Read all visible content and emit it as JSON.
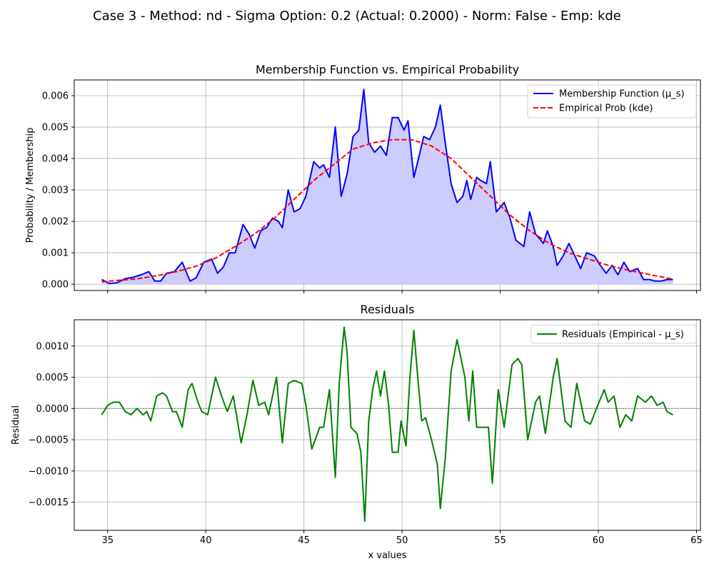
{
  "suptitle": "Case 3 - Method: nd - Sigma Option: 0.2 (Actual: 0.2000) - Norm: False - Emp: kde",
  "colors": {
    "membership": "#0000ff",
    "membership_fill": "#ccccff",
    "empirical": "#ff0000",
    "residual": "#008000",
    "grid": "#b0b0b0",
    "zero_line": "#808080"
  },
  "chart_data": [
    {
      "type": "line",
      "title": "Membership Function vs. Empirical Probability",
      "xlabel": "",
      "ylabel": "Probability / Membership",
      "xlim": [
        33.3,
        65.2
      ],
      "ylim": [
        -0.0002,
        0.0065
      ],
      "xticks": [
        35,
        40,
        45,
        50,
        55,
        60,
        65
      ],
      "yticks": [
        0.0,
        0.001,
        0.002,
        0.003,
        0.004,
        0.005,
        0.006
      ],
      "ytick_labels": [
        "0.000",
        "0.001",
        "0.002",
        "0.003",
        "0.004",
        "0.005",
        "0.006"
      ],
      "grid": true,
      "legend": "top-right",
      "series": [
        {
          "name": "Membership Function (μ_s)",
          "style": "solid",
          "fill": true,
          "points": [
            [
              34.7,
              0.00015
            ],
            [
              35.1,
              2e-05
            ],
            [
              35.5,
              5e-05
            ],
            [
              35.9,
              0.00018
            ],
            [
              36.3,
              0.00022
            ],
            [
              36.7,
              0.0003
            ],
            [
              37.1,
              0.0004
            ],
            [
              37.4,
              0.0001
            ],
            [
              37.7,
              0.0001
            ],
            [
              38.0,
              0.00035
            ],
            [
              38.4,
              0.0004
            ],
            [
              38.8,
              0.0007
            ],
            [
              39.2,
              0.0001
            ],
            [
              39.5,
              0.0002
            ],
            [
              39.9,
              0.0007
            ],
            [
              40.3,
              0.0008
            ],
            [
              40.6,
              0.00035
            ],
            [
              40.9,
              0.00055
            ],
            [
              41.2,
              0.001
            ],
            [
              41.5,
              0.001
            ],
            [
              41.9,
              0.0019
            ],
            [
              42.2,
              0.0016
            ],
            [
              42.5,
              0.00115
            ],
            [
              42.8,
              0.0017
            ],
            [
              43.1,
              0.0018
            ],
            [
              43.4,
              0.0021
            ],
            [
              43.7,
              0.002
            ],
            [
              43.9,
              0.0018
            ],
            [
              44.2,
              0.003
            ],
            [
              44.5,
              0.0023
            ],
            [
              44.8,
              0.0024
            ],
            [
              45.1,
              0.0028
            ],
            [
              45.5,
              0.0039
            ],
            [
              45.8,
              0.0037
            ],
            [
              46.0,
              0.0038
            ],
            [
              46.3,
              0.0034
            ],
            [
              46.6,
              0.005
            ],
            [
              46.9,
              0.0028
            ],
            [
              47.2,
              0.0035
            ],
            [
              47.5,
              0.0047
            ],
            [
              47.8,
              0.0049
            ],
            [
              48.05,
              0.0062
            ],
            [
              48.3,
              0.0045
            ],
            [
              48.6,
              0.0042
            ],
            [
              48.9,
              0.0044
            ],
            [
              49.2,
              0.0041
            ],
            [
              49.5,
              0.0053
            ],
            [
              49.8,
              0.0053
            ],
            [
              50.1,
              0.0049
            ],
            [
              50.3,
              0.0052
            ],
            [
              50.6,
              0.0034
            ],
            [
              50.8,
              0.0039
            ],
            [
              51.1,
              0.0047
            ],
            [
              51.4,
              0.0046
            ],
            [
              51.7,
              0.005
            ],
            [
              51.95,
              0.0057
            ],
            [
              52.2,
              0.0045
            ],
            [
              52.5,
              0.0032
            ],
            [
              52.8,
              0.0026
            ],
            [
              53.1,
              0.0028
            ],
            [
              53.3,
              0.0033
            ],
            [
              53.5,
              0.0027
            ],
            [
              53.8,
              0.0034
            ],
            [
              54.0,
              0.0033
            ],
            [
              54.3,
              0.0032
            ],
            [
              54.5,
              0.0039
            ],
            [
              54.8,
              0.0023
            ],
            [
              55.2,
              0.0026
            ],
            [
              55.5,
              0.0021
            ],
            [
              55.8,
              0.0014
            ],
            [
              56.2,
              0.0012
            ],
            [
              56.5,
              0.0023
            ],
            [
              56.8,
              0.0016
            ],
            [
              57.2,
              0.0013
            ],
            [
              57.4,
              0.0017
            ],
            [
              57.7,
              0.0012
            ],
            [
              57.9,
              0.0006
            ],
            [
              58.2,
              0.0009
            ],
            [
              58.5,
              0.0013
            ],
            [
              58.8,
              0.0009
            ],
            [
              59.1,
              0.0005
            ],
            [
              59.4,
              0.001
            ],
            [
              59.8,
              0.0009
            ],
            [
              60.1,
              0.0006
            ],
            [
              60.4,
              0.00035
            ],
            [
              60.7,
              0.0006
            ],
            [
              61.0,
              0.0003
            ],
            [
              61.3,
              0.0007
            ],
            [
              61.6,
              0.0004
            ],
            [
              62.0,
              0.0005
            ],
            [
              62.3,
              0.00015
            ],
            [
              62.6,
              0.00015
            ],
            [
              62.9,
              0.0001
            ],
            [
              63.2,
              0.0001
            ],
            [
              63.5,
              0.00015
            ],
            [
              63.8,
              0.00015
            ]
          ]
        },
        {
          "name": "Empirical Prob (kde)",
          "style": "dashed",
          "fill": false,
          "points": [
            [
              34.7,
              8e-05
            ],
            [
              35.5,
              0.00012
            ],
            [
              36.5,
              0.00017
            ],
            [
              37.5,
              0.00027
            ],
            [
              38.5,
              0.0004
            ],
            [
              39.5,
              0.00057
            ],
            [
              40.5,
              0.00083
            ],
            [
              41.5,
              0.0012
            ],
            [
              42.5,
              0.0016
            ],
            [
              43.5,
              0.0021
            ],
            [
              44.5,
              0.0027
            ],
            [
              45.5,
              0.0033
            ],
            [
              46.5,
              0.0038
            ],
            [
              47.5,
              0.0043
            ],
            [
              48.5,
              0.0045
            ],
            [
              49.5,
              0.0046
            ],
            [
              50.5,
              0.0046
            ],
            [
              51.5,
              0.0044
            ],
            [
              52.5,
              0.004
            ],
            [
              53.5,
              0.0034
            ],
            [
              54.5,
              0.0028
            ],
            [
              55.5,
              0.0022
            ],
            [
              56.5,
              0.0017
            ],
            [
              57.5,
              0.0013
            ],
            [
              58.5,
              0.001
            ],
            [
              59.5,
              0.0008
            ],
            [
              60.5,
              0.0006
            ],
            [
              61.5,
              0.00045
            ],
            [
              62.5,
              0.00032
            ],
            [
              63.8,
              0.00016
            ]
          ]
        }
      ]
    },
    {
      "type": "line",
      "title": "Residuals",
      "xlabel": "x values",
      "ylabel": "Residual",
      "xlim": [
        33.3,
        65.2
      ],
      "ylim": [
        -0.00195,
        0.00142
      ],
      "xticks": [
        35,
        40,
        45,
        50,
        55,
        60,
        65
      ],
      "xtick_labels": [
        "35",
        "40",
        "45",
        "50",
        "55",
        "60",
        "65"
      ],
      "yticks": [
        -0.0015,
        -0.001,
        -0.0005,
        0.0,
        0.0005,
        0.001
      ],
      "ytick_labels": [
        "−0.0015",
        "−0.0010",
        "−0.0005",
        "0.0000",
        "0.0005",
        "0.0010"
      ],
      "grid": true,
      "legend": "top-right",
      "series": [
        {
          "name": "Residuals (Empirical - μ_s)",
          "style": "solid",
          "points": [
            [
              34.7,
              -0.0001
            ],
            [
              35.0,
              5e-05
            ],
            [
              35.3,
              0.0001
            ],
            [
              35.6,
              0.0001
            ],
            [
              35.9,
              -5e-05
            ],
            [
              36.2,
              -0.0001
            ],
            [
              36.5,
              0.0
            ],
            [
              36.8,
              -0.0001
            ],
            [
              37.0,
              -5e-05
            ],
            [
              37.2,
              -0.0002
            ],
            [
              37.5,
              0.0002
            ],
            [
              37.8,
              0.00025
            ],
            [
              38.0,
              0.0002
            ],
            [
              38.3,
              -5e-05
            ],
            [
              38.5,
              -5e-05
            ],
            [
              38.8,
              -0.0003
            ],
            [
              39.1,
              0.0003
            ],
            [
              39.3,
              0.0004
            ],
            [
              39.6,
              0.0001
            ],
            [
              39.8,
              -5e-05
            ],
            [
              40.1,
              -0.0001
            ],
            [
              40.5,
              0.0005
            ],
            [
              40.8,
              0.0002
            ],
            [
              41.1,
              -5e-05
            ],
            [
              41.4,
              0.0002
            ],
            [
              41.8,
              -0.00055
            ],
            [
              42.1,
              -0.0001
            ],
            [
              42.4,
              0.00045
            ],
            [
              42.7,
              5e-05
            ],
            [
              43.0,
              0.0001
            ],
            [
              43.2,
              -0.0001
            ],
            [
              43.6,
              0.0005
            ],
            [
              43.9,
              -0.00055
            ],
            [
              44.2,
              0.0004
            ],
            [
              44.5,
              0.00045
            ],
            [
              44.9,
              0.0004
            ],
            [
              45.1,
              5e-05
            ],
            [
              45.4,
              -0.00065
            ],
            [
              45.8,
              -0.0003
            ],
            [
              46.0,
              -0.0003
            ],
            [
              46.3,
              0.0003
            ],
            [
              46.6,
              -0.0011
            ],
            [
              46.8,
              0.0004
            ],
            [
              47.05,
              0.0013
            ],
            [
              47.2,
              0.0009
            ],
            [
              47.4,
              -0.0003
            ],
            [
              47.7,
              -0.0004
            ],
            [
              47.9,
              -0.0007
            ],
            [
              48.1,
              -0.0018
            ],
            [
              48.3,
              -0.0002
            ],
            [
              48.5,
              0.0003
            ],
            [
              48.7,
              0.0006
            ],
            [
              48.9,
              0.0002
            ],
            [
              49.1,
              0.0006
            ],
            [
              49.3,
              0.0001
            ],
            [
              49.5,
              -0.0007
            ],
            [
              49.8,
              -0.0007
            ],
            [
              49.95,
              -0.0002
            ],
            [
              50.2,
              -0.0006
            ],
            [
              50.4,
              0.0005
            ],
            [
              50.6,
              0.00125
            ],
            [
              50.8,
              0.0005
            ],
            [
              51.0,
              -0.0002
            ],
            [
              51.2,
              -0.00015
            ],
            [
              51.5,
              -0.0005
            ],
            [
              51.8,
              -0.0009
            ],
            [
              51.95,
              -0.0016
            ],
            [
              52.2,
              -0.0008
            ],
            [
              52.5,
              0.0006
            ],
            [
              52.8,
              0.0011
            ],
            [
              53.0,
              0.0008
            ],
            [
              53.2,
              0.0005
            ],
            [
              53.4,
              -0.0002
            ],
            [
              53.6,
              0.0006
            ],
            [
              53.8,
              -0.0003
            ],
            [
              54.2,
              -0.0003
            ],
            [
              54.4,
              -0.0003
            ],
            [
              54.6,
              -0.0012
            ],
            [
              54.9,
              0.0003
            ],
            [
              55.2,
              -0.0003
            ],
            [
              55.6,
              0.0007
            ],
            [
              55.9,
              0.0008
            ],
            [
              56.1,
              0.0007
            ],
            [
              56.4,
              -0.0005
            ],
            [
              56.8,
              0.0001
            ],
            [
              57.0,
              0.0002
            ],
            [
              57.3,
              -0.0004
            ],
            [
              57.7,
              0.0005
            ],
            [
              57.9,
              0.0008
            ],
            [
              58.3,
              -0.0002
            ],
            [
              58.6,
              -0.0003
            ],
            [
              58.9,
              0.0004
            ],
            [
              59.3,
              -0.0002
            ],
            [
              59.6,
              -0.00025
            ],
            [
              59.9,
              0.0
            ],
            [
              60.3,
              0.0003
            ],
            [
              60.5,
              0.0001
            ],
            [
              60.8,
              0.0002
            ],
            [
              61.1,
              -0.0003
            ],
            [
              61.4,
              -0.0001
            ],
            [
              61.7,
              -0.0002
            ],
            [
              62.0,
              0.0002
            ],
            [
              62.4,
              0.0001
            ],
            [
              62.7,
              0.0002
            ],
            [
              63.0,
              5e-05
            ],
            [
              63.3,
              0.0001
            ],
            [
              63.5,
              -5e-05
            ],
            [
              63.8,
              -0.0001
            ]
          ]
        }
      ]
    }
  ]
}
